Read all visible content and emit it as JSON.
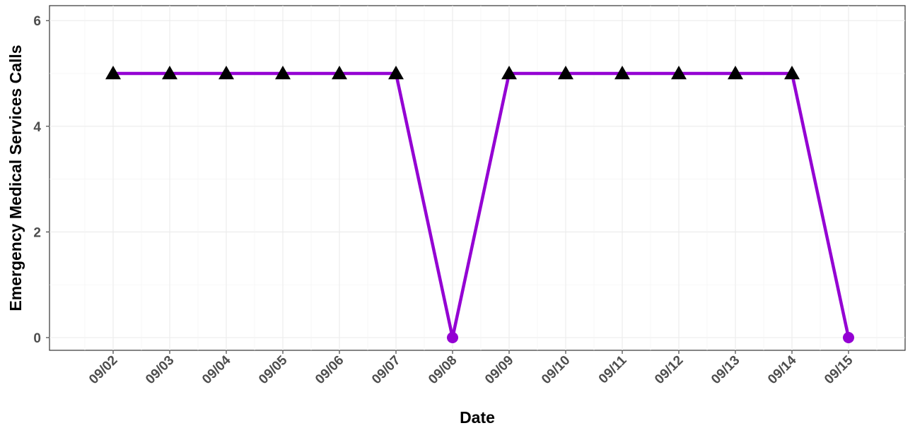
{
  "chart_data": {
    "type": "line",
    "xlabel": "Date",
    "ylabel": "Emergency Medical Services Calls",
    "categories": [
      "09/02",
      "09/03",
      "09/04",
      "09/05",
      "09/06",
      "09/07",
      "09/08",
      "09/09",
      "09/10",
      "09/11",
      "09/12",
      "09/13",
      "09/14",
      "09/15"
    ],
    "values": [
      5,
      5,
      5,
      5,
      5,
      5,
      0,
      5,
      5,
      5,
      5,
      5,
      5,
      0
    ],
    "point_shapes": [
      "triangle",
      "triangle",
      "triangle",
      "triangle",
      "triangle",
      "triangle",
      "circle",
      "triangle",
      "triangle",
      "triangle",
      "triangle",
      "triangle",
      "triangle",
      "circle"
    ],
    "ylim": [
      0,
      6
    ],
    "y_ticks": [
      "0",
      "2",
      "4",
      "6"
    ],
    "grid": true,
    "colors": {
      "line": "#9400D3",
      "triangle": "#000000",
      "circle": "#9400D3"
    }
  }
}
